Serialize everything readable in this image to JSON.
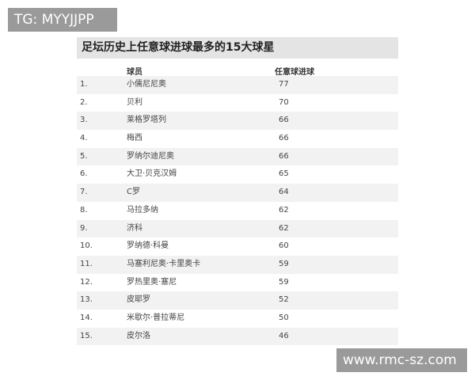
{
  "watermarks": {
    "top_left": "TG: MYYJJPP",
    "bottom_right": "www.rmc-sz.com"
  },
  "title": "足坛历史上任意球进球最多的15大球星",
  "columns": [
    "",
    "球员",
    "任意球进球"
  ],
  "rows": [
    {
      "rank": "1.",
      "name": "小儒尼尼奥",
      "goals": "77"
    },
    {
      "rank": "2.",
      "name": "贝利",
      "goals": "70"
    },
    {
      "rank": "3.",
      "name": "莱格罗塔列",
      "goals": "66"
    },
    {
      "rank": "4.",
      "name": "梅西",
      "goals": "66"
    },
    {
      "rank": "5.",
      "name": "罗纳尔迪尼奥",
      "goals": "66"
    },
    {
      "rank": "6.",
      "name": "大卫·贝克汉姆",
      "goals": "65"
    },
    {
      "rank": "7.",
      "name": "C罗",
      "goals": "64"
    },
    {
      "rank": "8.",
      "name": "马拉多纳",
      "goals": "62"
    },
    {
      "rank": "9.",
      "name": "济科",
      "goals": "62"
    },
    {
      "rank": "10.",
      "name": "罗纳德·科曼",
      "goals": "60"
    },
    {
      "rank": "11.",
      "name": "马塞利尼奥·卡里奥卡",
      "goals": "59"
    },
    {
      "rank": "12.",
      "name": "罗热里奥·塞尼",
      "goals": "59"
    },
    {
      "rank": "13.",
      "name": "皮耶罗",
      "goals": "52"
    },
    {
      "rank": "14.",
      "name": "米歇尔·普拉蒂尼",
      "goals": "50"
    },
    {
      "rank": "15.",
      "name": "皮尔洛",
      "goals": "46"
    }
  ]
}
